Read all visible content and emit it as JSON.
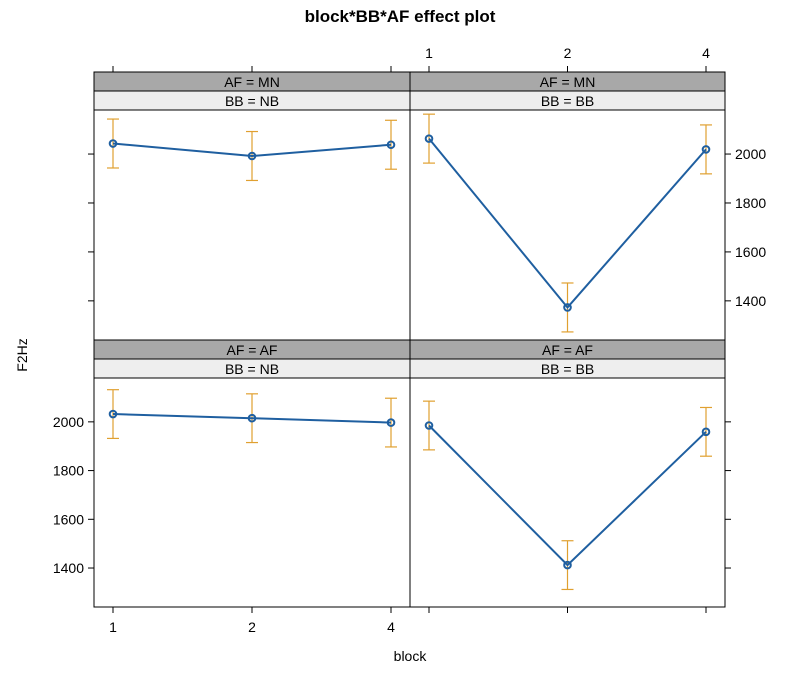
{
  "chart_data": {
    "type": "line",
    "title": "block*BB*AF effect plot",
    "xlabel": "block",
    "ylabel": "F2Hz",
    "categories": [
      "1",
      "2",
      "4"
    ],
    "y_ticks": [
      1400,
      1600,
      1800,
      2000
    ],
    "ylim": [
      1240,
      2180
    ],
    "colors": {
      "line": "#1f5fa0",
      "error_bar": "#e0a030",
      "strip_outer": "#a8a8a8",
      "strip_inner": "#eeeeee"
    },
    "panels": [
      {
        "af": "AF = MN",
        "bb": "BB = NB",
        "values": [
          2043,
          1992,
          2038
        ],
        "lower": [
          1943,
          1892,
          1938
        ],
        "upper": [
          2143,
          2092,
          2138
        ]
      },
      {
        "af": "AF = MN",
        "bb": "BB = BB",
        "values": [
          2063,
          1373,
          2019
        ],
        "lower": [
          1963,
          1273,
          1919
        ],
        "upper": [
          2163,
          1473,
          2119
        ]
      },
      {
        "af": "AF = AF",
        "bb": "BB = NB",
        "values": [
          2032,
          2015,
          1997
        ],
        "lower": [
          1932,
          1915,
          1897
        ],
        "upper": [
          2132,
          2115,
          2097
        ]
      },
      {
        "af": "AF = AF",
        "bb": "BB = BB",
        "values": [
          1985,
          1412,
          1959
        ],
        "lower": [
          1885,
          1312,
          1859
        ],
        "upper": [
          2085,
          1512,
          2059
        ]
      }
    ]
  }
}
